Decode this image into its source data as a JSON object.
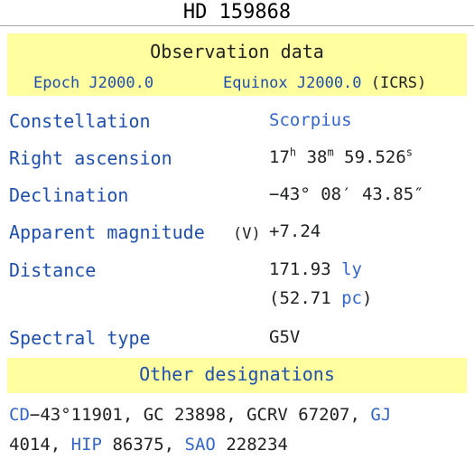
{
  "title": "HD 159868",
  "obs": {
    "heading": "Observation data",
    "epoch": "Epoch J2000.0",
    "equinox": "Equinox J2000.0",
    "icrs": "(ICRS)"
  },
  "rows": {
    "constellation": {
      "label": "Constellation",
      "value": "Scorpius"
    },
    "ra": {
      "label": "Right ascension",
      "h": "17",
      "h_unit": "h",
      "m": " 38",
      "m_unit": "m",
      "s": " 59.526",
      "s_unit": "s"
    },
    "dec": {
      "label": "Declination",
      "value": "−43° 08′ 43.85″"
    },
    "mag": {
      "label": "Apparent magnitude",
      "band": "(V)",
      "value": "+7.24"
    },
    "distance": {
      "label": "Distance",
      "ly_value": "171.93",
      "ly_unit": "ly",
      "pc_open": "(52.71",
      "pc_unit": "pc",
      "pc_close": ")"
    },
    "spectral": {
      "label": "Spectral type",
      "value": "G5V"
    }
  },
  "other": {
    "heading": "Other designations",
    "cd": "CD",
    "cd_rest": "−43°11901, GC 23898, GCRV 67207,",
    "gj": "GJ",
    "line2_a": "4014,",
    "hip": "HIP",
    "hip_rest": "86375,",
    "sao": "SAO",
    "sao_rest": "228234"
  },
  "colors": {
    "header_bg": "#ffffa0",
    "label": "#1f4fae",
    "link": "#3366cc",
    "text": "#202122"
  }
}
